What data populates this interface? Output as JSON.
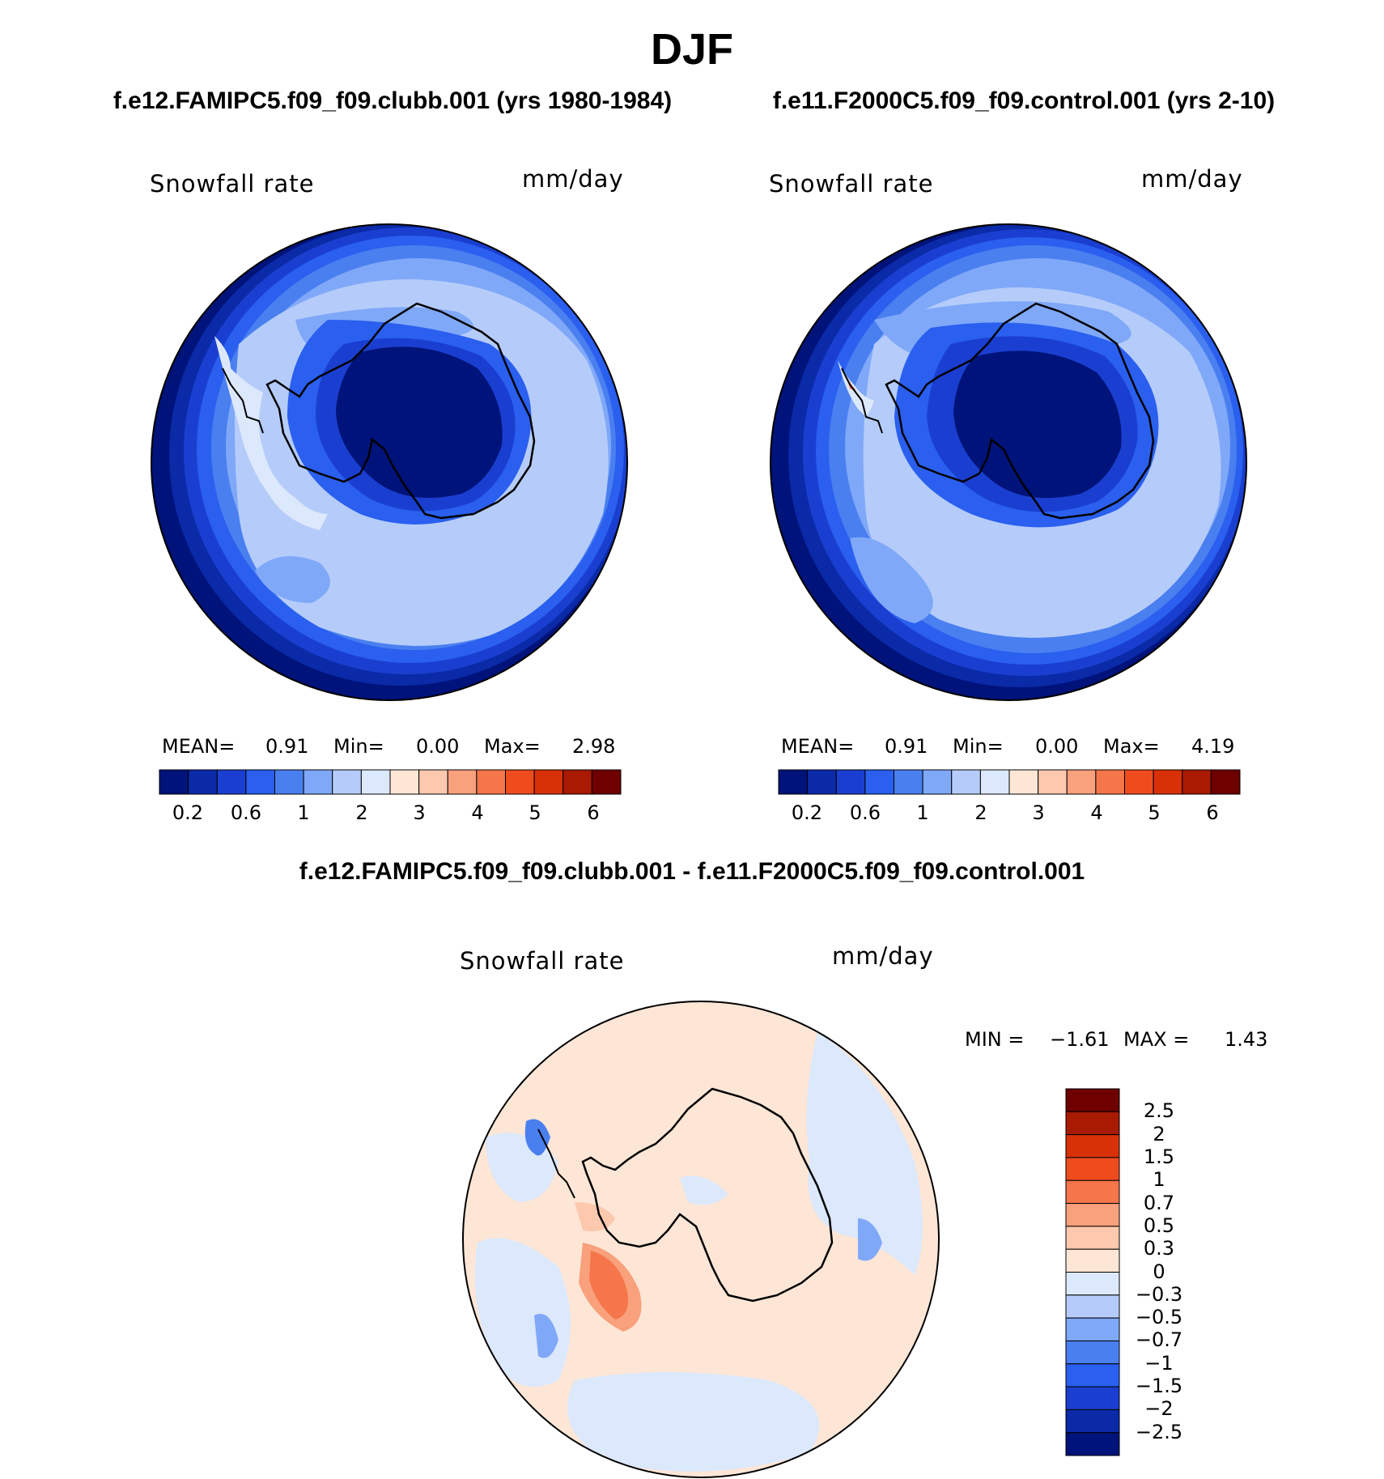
{
  "main_title": "DJF",
  "colors": {
    "snow_scale": [
      "#00137a",
      "#0a2aa8",
      "#1a3fd0",
      "#2a5fef",
      "#4a7ff0",
      "#80a8f8",
      "#b5ccfa",
      "#dce8fb",
      "#fde6d6",
      "#fcc8ae",
      "#f9a07c",
      "#f5764a",
      "#ef4c1e",
      "#d83108",
      "#a81a02",
      "#6e0000"
    ],
    "diff_scale": [
      "#00137a",
      "#0a2aa8",
      "#1a3fd0",
      "#2a5fef",
      "#4a7ff0",
      "#80a8f8",
      "#b5ccfa",
      "#dce8fb",
      "#fde6d6",
      "#fcc8ae",
      "#f9a07c",
      "#f5764a",
      "#ef4c1e",
      "#d83108",
      "#a81a02",
      "#6e0000"
    ],
    "land_outline": "#000000",
    "coast_dark": "#000a5e"
  },
  "panels": [
    {
      "case": "f.e12.FAMIPC5.f09_f09.clubb.001 (yrs 1980-1984)",
      "variable": "Snowfall rate",
      "units": "mm/day",
      "mean_label": "MEAN=",
      "mean": "0.91",
      "min_label": "Min=",
      "min": "0.00",
      "max_label": "Max=",
      "max": "2.98",
      "ticks": [
        "0.2",
        "0.6",
        "1",
        "2",
        "3",
        "4",
        "5",
        "6"
      ]
    },
    {
      "case": "f.e11.F2000C5.f09_f09.control.001 (yrs 2-10)",
      "variable": "Snowfall rate",
      "units": "mm/day",
      "mean_label": "MEAN=",
      "mean": "0.91",
      "min_label": "Min=",
      "min": "0.00",
      "max_label": "Max=",
      "max": "4.19",
      "ticks": [
        "0.2",
        "0.6",
        "1",
        "2",
        "3",
        "4",
        "5",
        "6"
      ]
    }
  ],
  "difference": {
    "title": "f.e12.FAMIPC5.f09_f09.clubb.001 - f.e11.F2000C5.f09_f09.control.001",
    "variable": "Snowfall rate",
    "units": "mm/day",
    "min_label": "MIN =",
    "min": "−1.61",
    "max_label": "MAX =",
    "max": "1.43",
    "ticks": [
      "2.5",
      "2",
      "1.5",
      "1",
      "0.7",
      "0.5",
      "0.3",
      "0",
      "−0.3",
      "−0.5",
      "−0.7",
      "−1",
      "−1.5",
      "−2",
      "−2.5"
    ]
  }
}
